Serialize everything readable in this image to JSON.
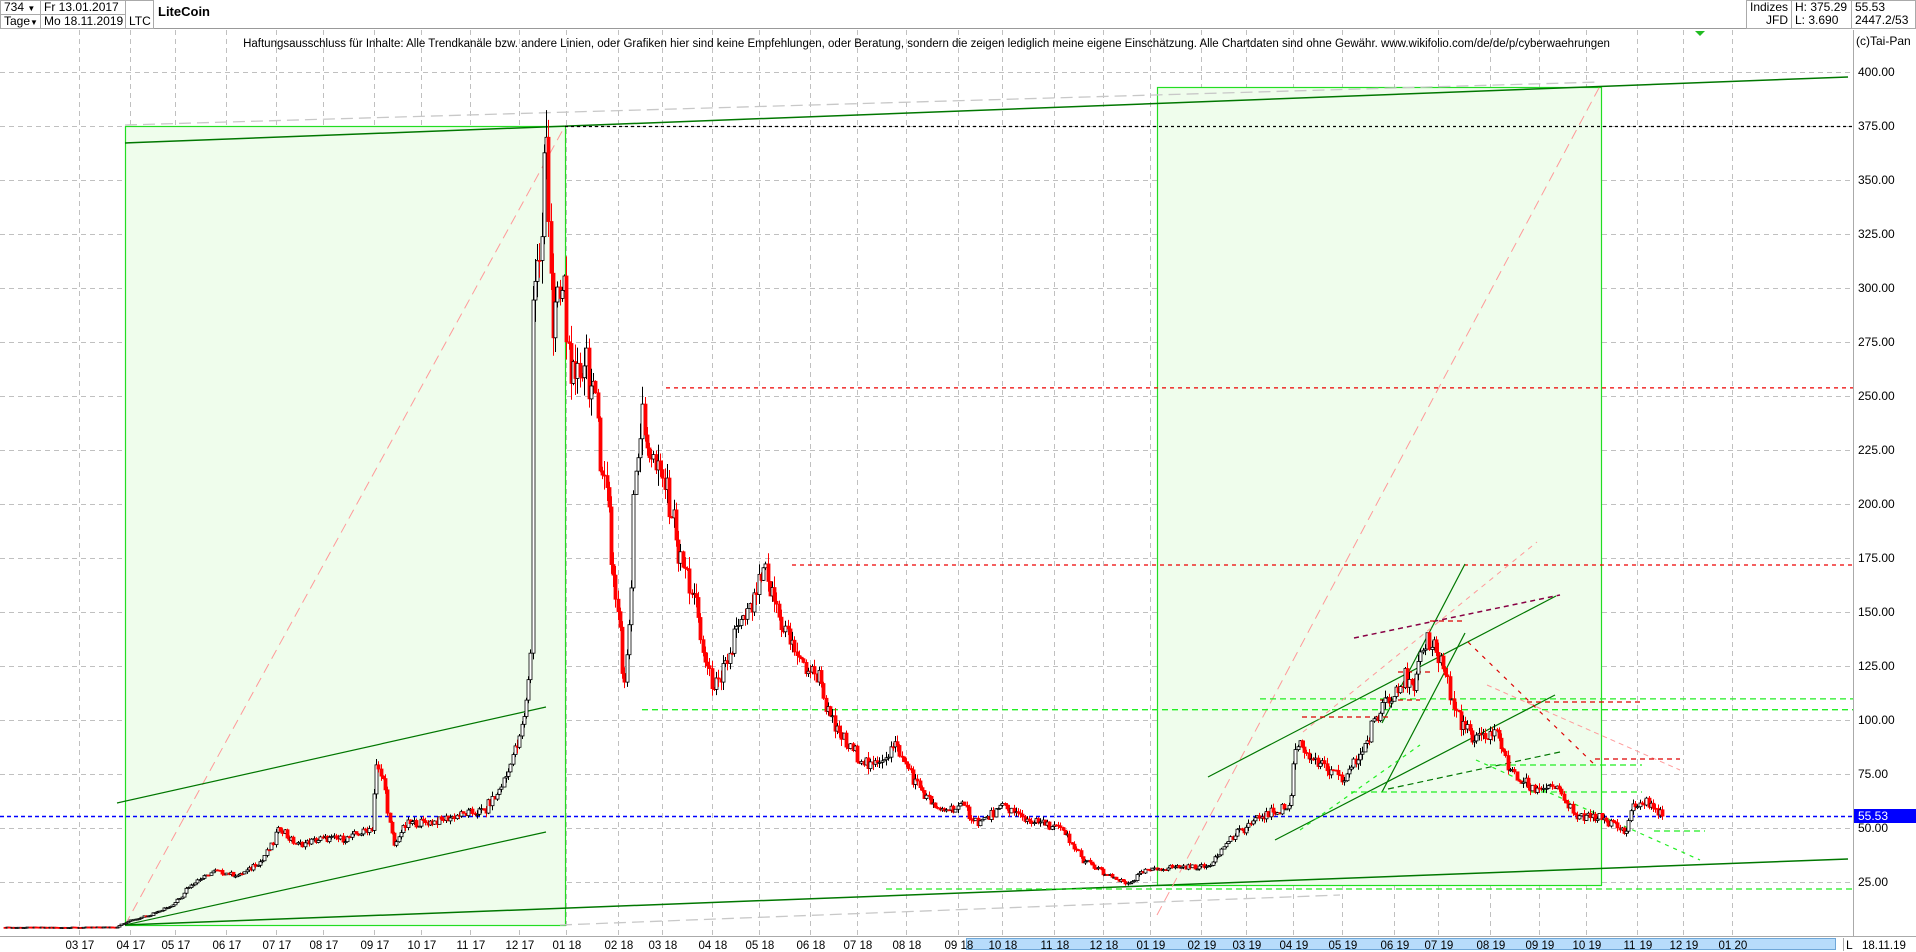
{
  "header": {
    "candle_count": "734",
    "period": "Tage",
    "start_date": "Fr 13.01.2017",
    "end_date": "Mo 18.11.2019",
    "symbol": "LTC",
    "title": "LiteCoin",
    "index_label": "Indizes",
    "source": "JFD",
    "high": "H: 375.29",
    "low": "L: 3.690",
    "last": "55.53",
    "extra": "2447.2/53"
  },
  "disclaimer": "Haftungsausschluss für Inhalte: Alle Trendkanäle bzw. andere Linien, oder Grafiken hier sind keine Empfehlungen, oder Beratung, sondern die zeigen lediglich meine eigene Einschätzung. Alle Chartdaten sind ohne Gewähr.  www.wikifolio.com/de/de/p/cyberwaehrungen",
  "copyright": "(c)Tai-Pan",
  "footer": {
    "mode": "L",
    "date": "18.11.19"
  },
  "colors": {
    "up": "#000000",
    "down": "#ff0000",
    "current_price": "#0000ff",
    "box_fill": "#effdec",
    "box_border": "#22dd22",
    "trend": "#007700"
  },
  "chart_data": {
    "type": "candlestick",
    "title": "LiteCoin",
    "current_price": 55.53,
    "ylim": [
      0,
      400
    ],
    "y_ticks": [
      "400.00",
      "375.00",
      "350.00",
      "325.00",
      "300.00",
      "275.00",
      "250.00",
      "225.00",
      "200.00",
      "175.00",
      "150.00",
      "125.00",
      "100.00",
      "75.00",
      "50.00",
      "25.00"
    ],
    "y_tick_values": [
      400,
      375,
      350,
      325,
      300,
      275,
      250,
      225,
      200,
      175,
      150,
      125,
      100,
      75,
      50,
      25
    ],
    "x_ticks": [
      {
        "month": "2017-03",
        "a": "03",
        "b": "17"
      },
      {
        "month": "2017-04",
        "a": "04",
        "b": "17"
      },
      {
        "month": "2017-05",
        "a": "05",
        "b": "17"
      },
      {
        "month": "2017-06",
        "a": "06",
        "b": "17"
      },
      {
        "month": "2017-07",
        "a": "07",
        "b": "17"
      },
      {
        "month": "2017-08",
        "a": "08",
        "b": "17"
      },
      {
        "month": "2017-09",
        "a": "09",
        "b": "17"
      },
      {
        "month": "2017-10",
        "a": "10",
        "b": "17"
      },
      {
        "month": "2017-11",
        "a": "11",
        "b": "17"
      },
      {
        "month": "2017-12",
        "a": "12",
        "b": "17"
      },
      {
        "month": "2018-01",
        "a": "01",
        "b": "18"
      },
      {
        "month": "2018-02",
        "a": "02",
        "b": "18"
      },
      {
        "month": "2018-03",
        "a": "03",
        "b": "18"
      },
      {
        "month": "2018-04",
        "a": "04",
        "b": "18"
      },
      {
        "month": "2018-05",
        "a": "05",
        "b": "18"
      },
      {
        "month": "2018-06",
        "a": "06",
        "b": "18"
      },
      {
        "month": "2018-07",
        "a": "07",
        "b": "18"
      },
      {
        "month": "2018-08",
        "a": "08",
        "b": "18"
      },
      {
        "month": "2018-09",
        "a": "09",
        "b": "18"
      },
      {
        "month": "2018-10",
        "a": "10",
        "b": "18"
      },
      {
        "month": "2018-11",
        "a": "11",
        "b": "18"
      },
      {
        "month": "2018-12",
        "a": "12",
        "b": "18"
      },
      {
        "month": "2019-01",
        "a": "01",
        "b": "19"
      },
      {
        "month": "2019-02",
        "a": "02",
        "b": "19"
      },
      {
        "month": "2019-03",
        "a": "03",
        "b": "19"
      },
      {
        "month": "2019-04",
        "a": "04",
        "b": "19"
      },
      {
        "month": "2019-05",
        "a": "05",
        "b": "19"
      },
      {
        "month": "2019-06",
        "a": "06",
        "b": "19"
      },
      {
        "month": "2019-07",
        "a": "07",
        "b": "19"
      },
      {
        "month": "2019-08",
        "a": "08",
        "b": "19"
      },
      {
        "month": "2019-09",
        "a": "09",
        "b": "19"
      },
      {
        "month": "2019-10",
        "a": "10",
        "b": "19"
      },
      {
        "month": "2019-11",
        "a": "11",
        "b": "19"
      },
      {
        "month": "2019-12",
        "a": "12",
        "b": "19"
      },
      {
        "month": "2020-01",
        "a": "01",
        "b": "20"
      }
    ],
    "horizontal_levels": [
      375,
      254,
      172,
      110,
      105,
      22
    ],
    "close_path": [
      [
        "2017-01-13",
        4.0
      ],
      [
        "2017-03-01",
        4.0
      ],
      [
        "2017-03-25",
        4.2
      ],
      [
        "2017-04-01",
        7
      ],
      [
        "2017-04-15",
        10
      ],
      [
        "2017-04-30",
        15
      ],
      [
        "2017-05-10",
        24
      ],
      [
        "2017-05-25",
        30
      ],
      [
        "2017-06-10",
        28
      ],
      [
        "2017-06-25",
        36
      ],
      [
        "2017-07-05",
        50
      ],
      [
        "2017-07-15",
        42
      ],
      [
        "2017-07-31",
        45
      ],
      [
        "2017-08-15",
        45
      ],
      [
        "2017-08-31",
        50
      ],
      [
        "2017-09-02",
        82
      ],
      [
        "2017-09-08",
        70
      ],
      [
        "2017-09-14",
        42
      ],
      [
        "2017-09-22",
        52
      ],
      [
        "2017-10-10",
        53
      ],
      [
        "2017-10-25",
        56
      ],
      [
        "2017-11-10",
        58
      ],
      [
        "2017-11-20",
        68
      ],
      [
        "2017-11-30",
        88
      ],
      [
        "2017-12-05",
        100
      ],
      [
        "2017-12-08",
        130
      ],
      [
        "2017-12-11",
        300
      ],
      [
        "2017-12-15",
        320
      ],
      [
        "2017-12-19",
        370
      ],
      [
        "2017-12-22",
        280
      ],
      [
        "2017-12-29",
        300
      ],
      [
        "2018-01-05",
        250
      ],
      [
        "2018-01-12",
        270
      ],
      [
        "2018-01-19",
        240
      ],
      [
        "2018-01-26",
        200
      ],
      [
        "2018-02-01",
        150
      ],
      [
        "2018-02-06",
        115
      ],
      [
        "2018-02-12",
        210
      ],
      [
        "2018-02-16",
        240
      ],
      [
        "2018-02-23",
        220
      ],
      [
        "2018-03-05",
        205
      ],
      [
        "2018-03-12",
        175
      ],
      [
        "2018-03-20",
        160
      ],
      [
        "2018-03-30",
        120
      ],
      [
        "2018-04-06",
        115
      ],
      [
        "2018-04-16",
        140
      ],
      [
        "2018-04-25",
        150
      ],
      [
        "2018-05-04",
        168
      ],
      [
        "2018-05-15",
        145
      ],
      [
        "2018-05-28",
        125
      ],
      [
        "2018-06-08",
        120
      ],
      [
        "2018-06-14",
        100
      ],
      [
        "2018-06-25",
        88
      ],
      [
        "2018-07-10",
        78
      ],
      [
        "2018-07-25",
        88
      ],
      [
        "2018-08-08",
        70
      ],
      [
        "2018-08-20",
        58
      ],
      [
        "2018-09-05",
        60
      ],
      [
        "2018-09-15",
        52
      ],
      [
        "2018-10-01",
        60
      ],
      [
        "2018-10-15",
        54
      ],
      [
        "2018-11-05",
        50
      ],
      [
        "2018-11-20",
        35
      ],
      [
        "2018-12-05",
        28
      ],
      [
        "2018-12-17",
        24
      ],
      [
        "2018-12-28",
        30
      ],
      [
        "2019-01-15",
        32
      ],
      [
        "2019-02-05",
        32
      ],
      [
        "2019-02-20",
        45
      ],
      [
        "2019-03-10",
        55
      ],
      [
        "2019-03-28",
        60
      ],
      [
        "2019-04-03",
        90
      ],
      [
        "2019-04-15",
        80
      ],
      [
        "2019-05-01",
        72
      ],
      [
        "2019-05-13",
        85
      ],
      [
        "2019-05-28",
        110
      ],
      [
        "2019-06-10",
        120
      ],
      [
        "2019-06-15",
        110
      ],
      [
        "2019-06-22",
        140
      ],
      [
        "2019-07-01",
        130
      ],
      [
        "2019-07-10",
        105
      ],
      [
        "2019-07-22",
        90
      ],
      [
        "2019-08-05",
        95
      ],
      [
        "2019-08-15",
        75
      ],
      [
        "2019-08-28",
        68
      ],
      [
        "2019-09-10",
        70
      ],
      [
        "2019-09-24",
        55
      ],
      [
        "2019-10-10",
        55
      ],
      [
        "2019-10-25",
        48
      ],
      [
        "2019-10-30",
        60
      ],
      [
        "2019-11-07",
        62
      ],
      [
        "2019-11-18",
        55.53
      ]
    ]
  }
}
